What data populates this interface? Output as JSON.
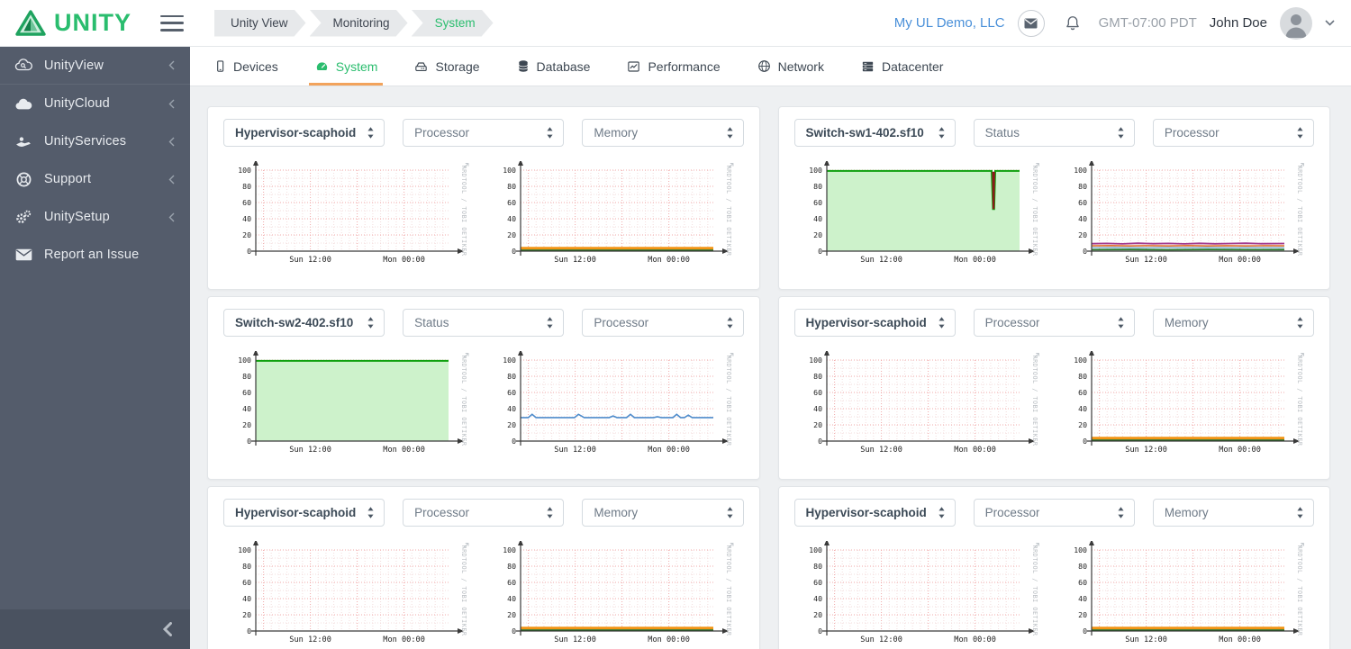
{
  "header": {
    "logo_text": "UNITY",
    "breadcrumbs": [
      {
        "label": "Unity View",
        "active": false
      },
      {
        "label": "Monitoring",
        "active": false
      },
      {
        "label": "System",
        "active": true
      }
    ],
    "account_link": "My UL Demo, LLC",
    "timezone": "GMT-07:00 PDT",
    "user_name": "John Doe"
  },
  "sidebar": {
    "items": [
      {
        "label": "UnityView",
        "icon": "cloud-search-icon",
        "expandable": true
      },
      {
        "label": "UnityCloud",
        "icon": "cloud-icon",
        "expandable": true
      },
      {
        "label": "UnityServices",
        "icon": "hand-share-icon",
        "expandable": true
      },
      {
        "label": "Support",
        "icon": "life-ring-icon",
        "expandable": true
      },
      {
        "label": "UnitySetup",
        "icon": "gears-icon",
        "expandable": true
      },
      {
        "label": "Report an Issue",
        "icon": "envelope-icon",
        "expandable": false
      }
    ]
  },
  "tabs": [
    {
      "label": "Devices",
      "icon": "tablet-icon",
      "active": false
    },
    {
      "label": "System",
      "icon": "dashboard-icon",
      "active": true
    },
    {
      "label": "Storage",
      "icon": "hdd-icon",
      "active": false
    },
    {
      "label": "Database",
      "icon": "database-icon",
      "active": false
    },
    {
      "label": "Performance",
      "icon": "chart-line-icon",
      "active": false
    },
    {
      "label": "Network",
      "icon": "globe-icon",
      "active": false
    },
    {
      "label": "Datacenter",
      "icon": "server-icon",
      "active": false
    }
  ],
  "colors": {
    "brand_green": "#2abd6e",
    "active_tab_underline": "#f2a35c",
    "link_blue": "#4a90d9",
    "sidebar_bg": "#545c6b",
    "rrd_status_fill": "#cdf2cb",
    "rrd_status_line": "#0fa00f",
    "rrd_drop_line": "#8b1a1a",
    "rrd_memory_orange": "#f29413",
    "rrd_memory_green": "#1c6b1c",
    "rrd_cpu_blue": "#4f8ccb"
  },
  "chart_axis": {
    "ylim": [
      0,
      100
    ],
    "y_ticks": [
      0,
      20,
      40,
      60,
      80,
      100
    ],
    "x_ticks": [
      {
        "label": "Sun 12:00",
        "pos": 0.283
      },
      {
        "label": "Mon 00:00",
        "pos": 0.769
      }
    ],
    "watermark": "RRDTOOL / TOBI OETIKER"
  },
  "graph_library": {
    "empty": {
      "type": "line",
      "series": []
    },
    "memory_flat": {
      "type": "line",
      "series": [
        {
          "name": "memory-used",
          "color": "#f29413",
          "width": 3,
          "points": [
            [
              0,
              3.6
            ],
            [
              1,
              3.6
            ]
          ]
        },
        {
          "name": "memory-free",
          "color": "#1c6b1c",
          "width": 1.6,
          "points": [
            [
              0,
              1
            ],
            [
              1,
              1
            ]
          ]
        }
      ]
    },
    "status_full": {
      "type": "area",
      "series": [
        {
          "name": "status-up",
          "color": "#0fa00f",
          "fill": "#cdf2cb",
          "width": 2,
          "points": [
            [
              0,
              99
            ],
            [
              1,
              99
            ]
          ]
        }
      ]
    },
    "status_dip": {
      "type": "area",
      "series": [
        {
          "name": "status-up",
          "color": "#0fa00f",
          "fill": "#cdf2cb",
          "width": 2,
          "points": [
            [
              0,
              99
            ],
            [
              0.855,
              99
            ],
            [
              0.862,
              52
            ],
            [
              0.868,
              52
            ],
            [
              0.874,
              99
            ],
            [
              1,
              99
            ]
          ]
        },
        {
          "name": "status-drop",
          "color": "#8b1a1a",
          "width": 2.2,
          "points": [
            [
              0.862,
              98
            ],
            [
              0.865,
              52
            ],
            [
              0.868,
              98
            ]
          ]
        }
      ]
    },
    "proc_multi": {
      "type": "line",
      "series": [
        {
          "name": "cpu-a",
          "color": "#a23a8e",
          "width": 1.8,
          "points": [
            [
              0,
              9.2
            ],
            [
              0.08,
              9.6
            ],
            [
              0.16,
              9
            ],
            [
              0.24,
              9.8
            ],
            [
              0.32,
              9.2
            ],
            [
              0.4,
              9.6
            ],
            [
              0.48,
              9
            ],
            [
              0.56,
              9.7
            ],
            [
              0.64,
              9.1
            ],
            [
              0.72,
              9.5
            ],
            [
              0.8,
              9.8
            ],
            [
              0.88,
              9.2
            ],
            [
              1,
              9.4
            ]
          ]
        },
        {
          "name": "cpu-b",
          "color": "#e2712c",
          "width": 1.6,
          "points": [
            [
              0,
              6.6
            ],
            [
              0.1,
              6.9
            ],
            [
              0.2,
              6.4
            ],
            [
              0.3,
              6.8
            ],
            [
              0.4,
              6.5
            ],
            [
              0.5,
              6.9
            ],
            [
              0.6,
              6.4
            ],
            [
              0.7,
              6.8
            ],
            [
              0.8,
              6.5
            ],
            [
              0.9,
              6.8
            ],
            [
              1,
              6.6
            ]
          ]
        },
        {
          "name": "cpu-c",
          "color": "#8fb8d8",
          "width": 1.6,
          "points": [
            [
              0,
              4.4
            ],
            [
              0.12,
              4.7
            ],
            [
              0.24,
              4.2
            ],
            [
              0.36,
              4.6
            ],
            [
              0.48,
              4.3
            ],
            [
              0.6,
              4.7
            ],
            [
              0.72,
              4.2
            ],
            [
              0.84,
              4.6
            ],
            [
              1,
              4.4
            ]
          ]
        },
        {
          "name": "cpu-d",
          "color": "#2a7a2a",
          "width": 1.8,
          "points": [
            [
              0,
              1.8
            ],
            [
              0.2,
              2
            ],
            [
              0.4,
              1.7
            ],
            [
              0.6,
              2
            ],
            [
              0.8,
              1.8
            ],
            [
              1,
              1.9
            ]
          ]
        }
      ]
    },
    "proc_blue": {
      "type": "line",
      "series": [
        {
          "name": "cpu",
          "color": "#4f8ccb",
          "width": 1.6,
          "points": [
            [
              0,
              29
            ],
            [
              0.04,
              29
            ],
            [
              0.06,
              33
            ],
            [
              0.08,
              29
            ],
            [
              0.28,
              29
            ],
            [
              0.3,
              33
            ],
            [
              0.315,
              31
            ],
            [
              0.33,
              29
            ],
            [
              0.46,
              29
            ],
            [
              0.48,
              31
            ],
            [
              0.5,
              29
            ],
            [
              0.55,
              29
            ],
            [
              0.57,
              33
            ],
            [
              0.59,
              29
            ],
            [
              0.69,
              29
            ],
            [
              0.71,
              30
            ],
            [
              0.73,
              29
            ],
            [
              0.79,
              29
            ],
            [
              0.81,
              33
            ],
            [
              0.83,
              29
            ],
            [
              0.85,
              29
            ],
            [
              0.87,
              32
            ],
            [
              0.89,
              29
            ],
            [
              1,
              29
            ]
          ]
        }
      ]
    }
  },
  "cards": [
    {
      "device": "Hypervisor-scaphoid",
      "metrics": [
        "Processor",
        "Memory"
      ],
      "graphs": [
        "empty",
        "memory_flat"
      ]
    },
    {
      "device": "Switch-sw1-402.sf10",
      "metrics": [
        "Status",
        "Processor"
      ],
      "graphs": [
        "status_dip",
        "proc_multi"
      ]
    },
    {
      "device": "Switch-sw2-402.sf10",
      "metrics": [
        "Status",
        "Processor"
      ],
      "graphs": [
        "status_full",
        "proc_blue"
      ]
    },
    {
      "device": "Hypervisor-scaphoid",
      "metrics": [
        "Processor",
        "Memory"
      ],
      "graphs": [
        "empty",
        "memory_flat"
      ]
    },
    {
      "device": "Hypervisor-scaphoid",
      "metrics": [
        "Processor",
        "Memory"
      ],
      "graphs": [
        "empty",
        "memory_flat"
      ]
    },
    {
      "device": "Hypervisor-scaphoid",
      "metrics": [
        "Processor",
        "Memory"
      ],
      "graphs": [
        "empty",
        "memory_flat"
      ]
    }
  ],
  "misc": {
    "expand_glyph": "↗"
  }
}
